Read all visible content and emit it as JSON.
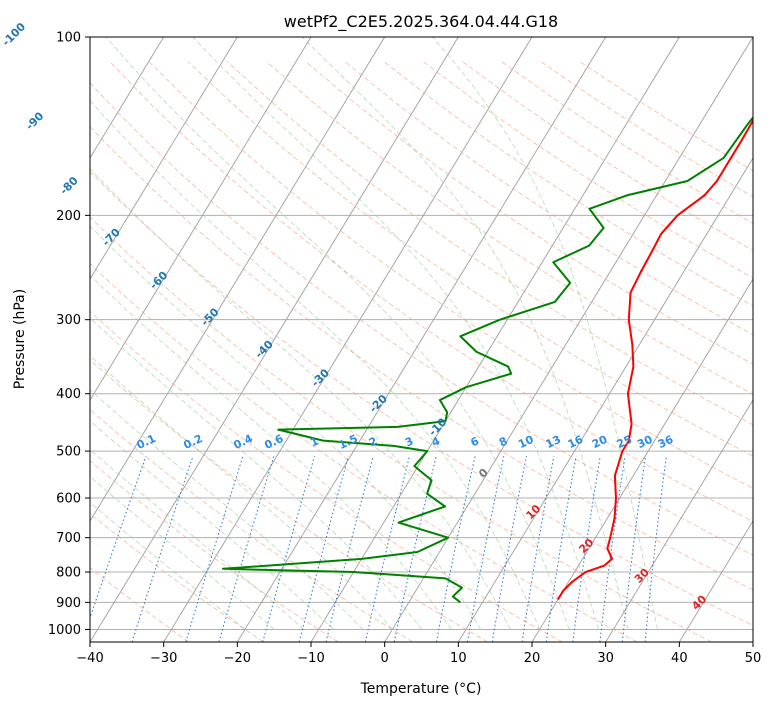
{
  "chart_data": {
    "type": "line",
    "title": "wetPf2_C2E5.2025.364.04.44.G18",
    "xlabel": "Temperature (°C)",
    "ylabel": "Pressure (hPa)",
    "xlim": [
      -40,
      50
    ],
    "ylim": [
      1050,
      100
    ],
    "y_scale": "log",
    "grid": true,
    "x_ticks": [
      -40,
      -30,
      -20,
      -10,
      0,
      10,
      20,
      30,
      40,
      50
    ],
    "x_tick_labels": [
      "−40",
      "−30",
      "−20",
      "−10",
      "0",
      "10",
      "20",
      "30",
      "40",
      "50"
    ],
    "y_ticks": [
      100,
      200,
      300,
      400,
      500,
      600,
      700,
      800,
      900,
      1000
    ],
    "y_tick_labels": [
      "100",
      "200",
      "300",
      "400",
      "500",
      "600",
      "700",
      "800",
      "900",
      "1000"
    ],
    "isotherm_skew_labels": [
      "-100",
      "-90",
      "-80",
      "-70",
      "-60",
      "-50",
      "-40",
      "-30",
      "-20",
      "-10",
      "0",
      "10",
      "20",
      "30",
      "40"
    ],
    "mixing_ratio_labels": [
      "0.1",
      "0.2",
      "0.4",
      "0.6",
      "1",
      "1.5",
      "2",
      "3",
      "4",
      "6",
      "8",
      "10",
      "13",
      "16",
      "20",
      "25",
      "30",
      "36"
    ],
    "series": [
      {
        "role": "temperature",
        "color": "#ff0000",
        "points": [
          [
            100,
            7.5
          ],
          [
            110,
            7
          ],
          [
            125,
            6.8
          ],
          [
            150,
            7
          ],
          [
            175,
            7
          ],
          [
            185,
            6.5
          ],
          [
            200,
            4.5
          ],
          [
            215,
            3.8
          ],
          [
            230,
            4
          ],
          [
            250,
            4.2
          ],
          [
            270,
            4.5
          ],
          [
            300,
            6.5
          ],
          [
            330,
            9
          ],
          [
            360,
            11
          ],
          [
            400,
            12.5
          ],
          [
            450,
            15.5
          ],
          [
            480,
            16.5
          ],
          [
            500,
            16.5
          ],
          [
            550,
            17.5
          ],
          [
            600,
            19.5
          ],
          [
            650,
            21
          ],
          [
            700,
            22
          ],
          [
            730,
            22.5
          ],
          [
            760,
            24
          ],
          [
            780,
            23.5
          ],
          [
            800,
            21.5
          ],
          [
            830,
            20.5
          ],
          [
            860,
            20
          ],
          [
            890,
            20
          ]
        ]
      },
      {
        "role": "dewpoint",
        "color": "#008000",
        "points": [
          [
            100,
            10
          ],
          [
            120,
            7.5
          ],
          [
            140,
            6.5
          ],
          [
            160,
            6
          ],
          [
            175,
            3
          ],
          [
            185,
            -4
          ],
          [
            195,
            -8
          ],
          [
            210,
            -4.5
          ],
          [
            225,
            -5
          ],
          [
            240,
            -8.5
          ],
          [
            260,
            -4.5
          ],
          [
            280,
            -5
          ],
          [
            300,
            -11
          ],
          [
            320,
            -15
          ],
          [
            340,
            -11.5
          ],
          [
            360,
            -6
          ],
          [
            370,
            -5
          ],
          [
            390,
            -10
          ],
          [
            410,
            -12.5
          ],
          [
            430,
            -10.5
          ],
          [
            445,
            -10
          ],
          [
            455,
            -16
          ],
          [
            460,
            -32
          ],
          [
            480,
            -25
          ],
          [
            490,
            -15
          ],
          [
            500,
            -10
          ],
          [
            530,
            -10.5
          ],
          [
            560,
            -7
          ],
          [
            590,
            -6.5
          ],
          [
            620,
            -3
          ],
          [
            660,
            -8
          ],
          [
            700,
            0
          ],
          [
            740,
            -3
          ],
          [
            760,
            -10
          ],
          [
            790,
            -28
          ],
          [
            800,
            -10
          ],
          [
            820,
            3
          ],
          [
            850,
            6
          ],
          [
            880,
            5.5
          ],
          [
            900,
            7
          ]
        ]
      }
    ]
  }
}
